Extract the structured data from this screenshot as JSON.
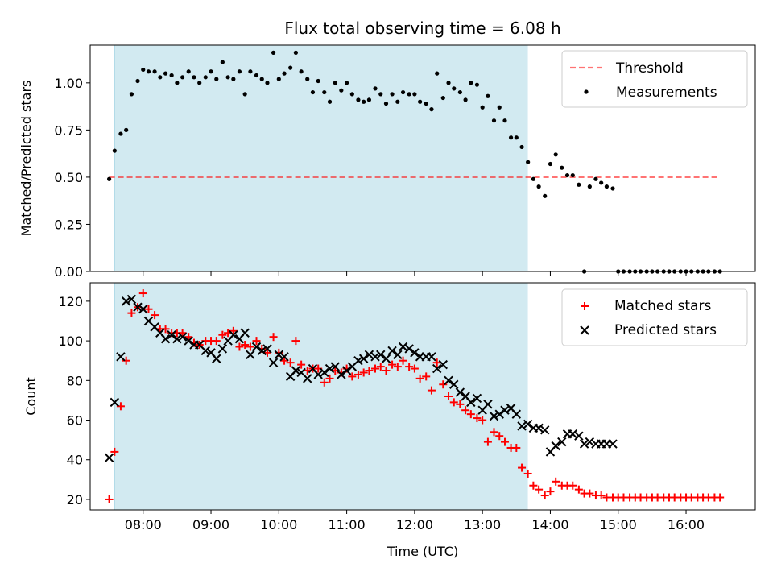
{
  "figure": {
    "title": "Flux total observing time = 6.08 h"
  },
  "colors": {
    "shade": "#add8e6",
    "threshold": "#ff0000",
    "measurement": "#000000",
    "matched": "#ff0000",
    "predicted": "#000000"
  },
  "chart_data": [
    {
      "type": "scatter",
      "name": "ratio-panel",
      "ylabel": "Matched/Predicted stars",
      "xlabel": "",
      "ylim": [
        0.0,
        1.2
      ],
      "xlim": [
        7.22,
        17.02
      ],
      "yticks": [
        0.0,
        0.25,
        0.5,
        0.75,
        1.0
      ],
      "ytick_labels": [
        "0.00",
        "0.25",
        "0.50",
        "0.75",
        "1.00"
      ],
      "observing_window": [
        7.58,
        13.66
      ],
      "threshold": {
        "label": "Threshold",
        "value": 0.5,
        "x_range": [
          7.5,
          16.5
        ]
      },
      "legend": {
        "position": "top-right",
        "entries": [
          "Threshold",
          "Measurements"
        ]
      },
      "series": [
        {
          "name": "Measurements",
          "x": [
            7.5,
            7.58,
            7.67,
            7.75,
            7.83,
            7.92,
            8.0,
            8.08,
            8.17,
            8.25,
            8.33,
            8.42,
            8.5,
            8.58,
            8.67,
            8.75,
            8.83,
            8.92,
            9.0,
            9.08,
            9.17,
            9.25,
            9.33,
            9.42,
            9.5,
            9.58,
            9.67,
            9.75,
            9.83,
            9.92,
            10.0,
            10.08,
            10.17,
            10.25,
            10.33,
            10.42,
            10.5,
            10.58,
            10.67,
            10.75,
            10.83,
            10.92,
            11.0,
            11.08,
            11.17,
            11.25,
            11.33,
            11.42,
            11.5,
            11.58,
            11.67,
            11.75,
            11.83,
            11.92,
            12.0,
            12.08,
            12.17,
            12.25,
            12.33,
            12.42,
            12.5,
            12.58,
            12.67,
            12.75,
            12.83,
            12.92,
            13.0,
            13.08,
            13.17,
            13.25,
            13.33,
            13.42,
            13.5,
            13.58,
            13.67,
            13.75,
            13.83,
            13.92,
            14.0,
            14.08,
            14.17,
            14.25,
            14.33,
            14.42,
            14.5,
            14.58,
            14.67,
            14.75,
            14.83,
            14.92,
            15.0,
            15.08,
            15.17,
            15.25,
            15.33,
            15.42,
            15.5,
            15.58,
            15.67,
            15.75,
            15.83,
            15.92,
            16.0,
            16.08,
            16.17,
            16.25,
            16.33,
            16.42,
            16.5
          ],
          "y": [
            0.49,
            0.64,
            0.73,
            0.75,
            0.94,
            1.01,
            1.07,
            1.06,
            1.06,
            1.03,
            1.05,
            1.04,
            1.0,
            1.03,
            1.06,
            1.03,
            1.0,
            1.03,
            1.06,
            1.02,
            1.11,
            1.03,
            1.02,
            1.06,
            0.94,
            1.06,
            1.04,
            1.02,
            1.0,
            1.16,
            1.02,
            1.05,
            1.08,
            1.16,
            1.06,
            1.02,
            0.95,
            1.01,
            0.95,
            0.9,
            1.0,
            0.96,
            1.0,
            0.94,
            0.91,
            0.9,
            0.91,
            0.97,
            0.94,
            0.89,
            0.94,
            0.9,
            0.95,
            0.94,
            0.94,
            0.9,
            0.89,
            0.86,
            1.05,
            0.92,
            1.0,
            0.97,
            0.95,
            0.91,
            1.0,
            0.99,
            0.87,
            0.93,
            0.8,
            0.87,
            0.8,
            0.71,
            0.71,
            0.66,
            0.58,
            0.49,
            0.45,
            0.4,
            0.57,
            0.62,
            0.55,
            0.51,
            0.51,
            0.46,
            0.0,
            0.45,
            0.49,
            0.47,
            0.45,
            0.44,
            0.0,
            0.0,
            0.0,
            0.0,
            0.0,
            0.0,
            0.0,
            0.0,
            0.0,
            0.0,
            0.0,
            0.0,
            0.0,
            0.0,
            0.0,
            0.0,
            0.0,
            0.0,
            0.0
          ]
        }
      ]
    },
    {
      "type": "scatter",
      "name": "count-panel",
      "title": "",
      "ylabel": "Count",
      "xlabel": "Time (UTC)",
      "ylim": [
        14.7,
        129.3
      ],
      "xlim": [
        7.22,
        17.02
      ],
      "yticks": [
        20,
        40,
        60,
        80,
        100,
        120
      ],
      "ytick_labels": [
        "20",
        "40",
        "60",
        "80",
        "100",
        "120"
      ],
      "xticks": [
        8,
        9,
        10,
        11,
        12,
        13,
        14,
        15,
        16
      ],
      "xtick_labels": [
        "08:00",
        "09:00",
        "10:00",
        "11:00",
        "12:00",
        "13:00",
        "14:00",
        "15:00",
        "16:00"
      ],
      "observing_window": [
        7.58,
        13.66
      ],
      "legend": {
        "position": "top-right",
        "entries": [
          "Matched stars",
          "Predicted stars"
        ]
      },
      "series": [
        {
          "name": "Matched stars",
          "marker": "plus",
          "x": [
            7.5,
            7.58,
            7.67,
            7.75,
            7.83,
            7.92,
            8.0,
            8.08,
            8.17,
            8.25,
            8.33,
            8.42,
            8.5,
            8.58,
            8.67,
            8.75,
            8.83,
            8.92,
            9.0,
            9.08,
            9.17,
            9.25,
            9.33,
            9.42,
            9.5,
            9.58,
            9.67,
            9.75,
            9.83,
            9.92,
            10.0,
            10.08,
            10.17,
            10.25,
            10.33,
            10.42,
            10.5,
            10.58,
            10.67,
            10.75,
            10.83,
            10.92,
            11.0,
            11.08,
            11.17,
            11.25,
            11.33,
            11.42,
            11.5,
            11.58,
            11.67,
            11.75,
            11.83,
            11.92,
            12.0,
            12.08,
            12.17,
            12.25,
            12.33,
            12.42,
            12.5,
            12.58,
            12.67,
            12.75,
            12.83,
            12.92,
            13.0,
            13.08,
            13.17,
            13.25,
            13.33,
            13.42,
            13.5,
            13.58,
            13.67,
            13.75,
            13.83,
            13.92,
            14.0,
            14.08,
            14.17,
            14.25,
            14.33,
            14.42,
            14.5,
            14.58,
            14.67,
            14.75,
            14.83,
            14.92,
            15.0,
            15.08,
            15.17,
            15.25,
            15.33,
            15.42,
            15.5,
            15.58,
            15.67,
            15.75,
            15.83,
            15.92,
            16.0,
            16.08,
            16.17,
            16.25,
            16.33,
            16.42,
            16.5
          ],
          "y": [
            20,
            44,
            67,
            90,
            114,
            117,
            124,
            116,
            113,
            106,
            106,
            104,
            104,
            104,
            102,
            99,
            98,
            100,
            100,
            100,
            103,
            104,
            105,
            97,
            98,
            97,
            100,
            96,
            94,
            102,
            94,
            90,
            89,
            100,
            88,
            85,
            86,
            86,
            79,
            81,
            85,
            84,
            86,
            82,
            83,
            84,
            85,
            86,
            87,
            85,
            88,
            87,
            90,
            87,
            86,
            81,
            82,
            75,
            89,
            78,
            72,
            69,
            68,
            65,
            63,
            61,
            60,
            49,
            54,
            52,
            49,
            46,
            46,
            36,
            33,
            27,
            25,
            22,
            24,
            29,
            27,
            27,
            27,
            25,
            23,
            23,
            22,
            22,
            21,
            21,
            21,
            21,
            21,
            21,
            21,
            21,
            21,
            21,
            21,
            21,
            21,
            21,
            21,
            21,
            21,
            21,
            21,
            21,
            21
          ]
        },
        {
          "name": "Predicted stars",
          "marker": "x",
          "x": [
            7.5,
            7.58,
            7.67,
            7.75,
            7.83,
            7.92,
            8.0,
            8.08,
            8.17,
            8.25,
            8.33,
            8.42,
            8.5,
            8.58,
            8.67,
            8.75,
            8.83,
            8.92,
            9.0,
            9.08,
            9.17,
            9.25,
            9.33,
            9.42,
            9.5,
            9.58,
            9.67,
            9.75,
            9.83,
            9.92,
            10.0,
            10.08,
            10.17,
            10.25,
            10.33,
            10.42,
            10.5,
            10.58,
            10.67,
            10.75,
            10.83,
            10.92,
            11.0,
            11.08,
            11.17,
            11.25,
            11.33,
            11.42,
            11.5,
            11.58,
            11.67,
            11.75,
            11.83,
            11.92,
            12.0,
            12.08,
            12.17,
            12.25,
            12.33,
            12.42,
            12.5,
            12.58,
            12.67,
            12.75,
            12.83,
            12.92,
            13.0,
            13.08,
            13.17,
            13.25,
            13.33,
            13.42,
            13.5,
            13.58,
            13.67,
            13.75,
            13.83,
            13.92,
            14.0,
            14.08,
            14.17,
            14.25,
            14.33,
            14.42,
            14.5,
            14.58,
            14.67,
            14.75,
            14.83,
            14.92
          ],
          "y": [
            41,
            69,
            92,
            120,
            121,
            117,
            116,
            110,
            107,
            104,
            101,
            103,
            101,
            102,
            100,
            98,
            98,
            95,
            94,
            91,
            96,
            100,
            103,
            101,
            104,
            93,
            97,
            95,
            96,
            89,
            93,
            92,
            82,
            85,
            84,
            81,
            86,
            83,
            84,
            86,
            87,
            83,
            85,
            87,
            90,
            91,
            93,
            92,
            93,
            91,
            95,
            93,
            97,
            96,
            94,
            92,
            92,
            92,
            86,
            88,
            80,
            78,
            74,
            72,
            69,
            71,
            65,
            68,
            62,
            63,
            65,
            66,
            63,
            57,
            58,
            56,
            56,
            55,
            44,
            47,
            49,
            53,
            53,
            52,
            48,
            49,
            48,
            48,
            48,
            48
          ]
        }
      ]
    }
  ]
}
